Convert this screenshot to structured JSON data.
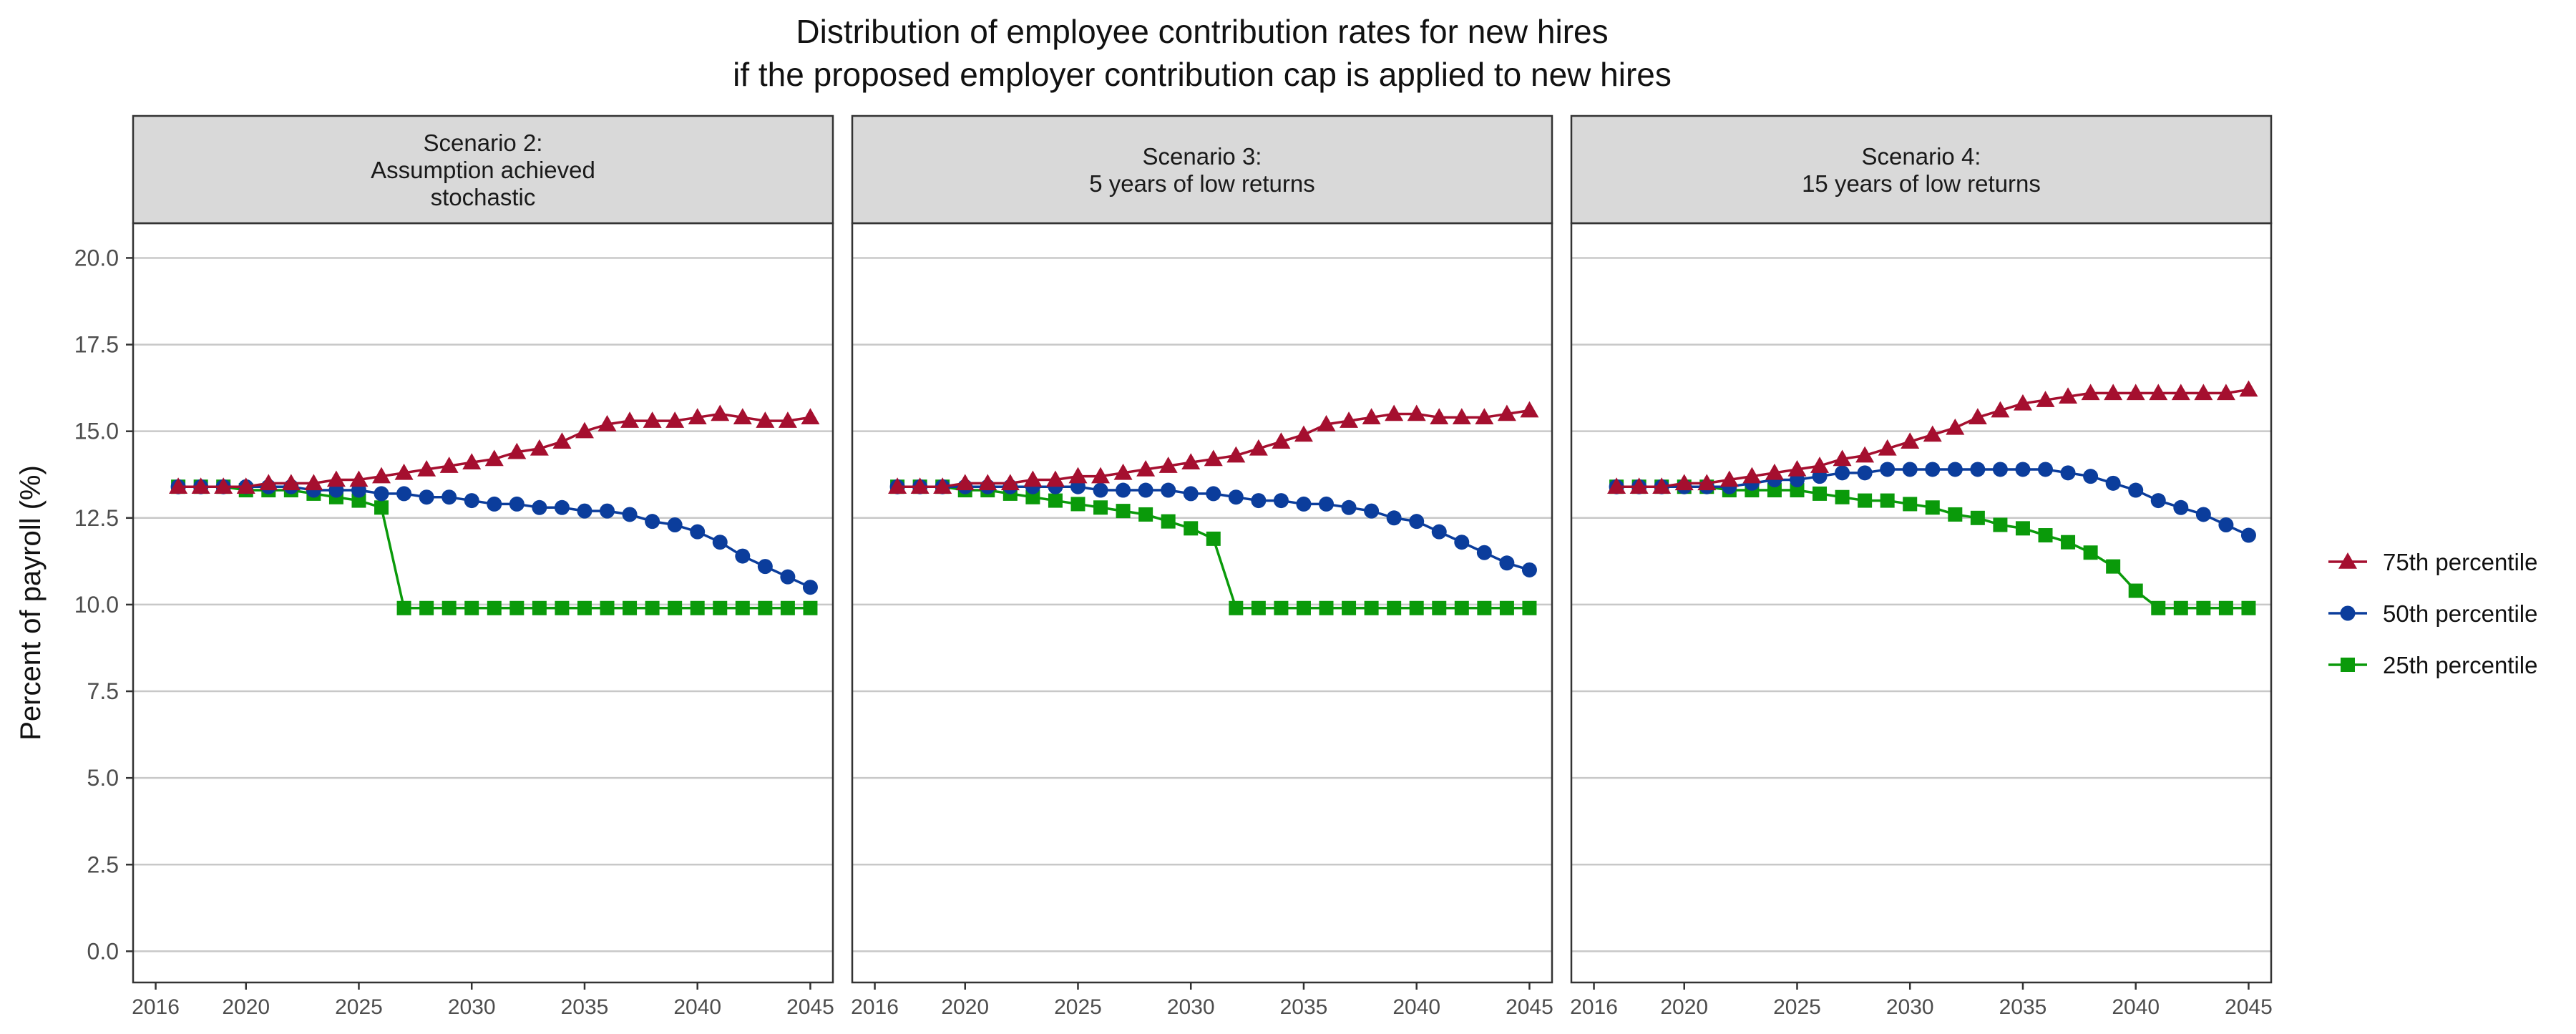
{
  "chart_data": {
    "type": "line",
    "title_lines": [
      "Distribution of employee contribution rates for new hires",
      "if the proposed employer contribution cap is applied to new hires"
    ],
    "ylabel": "Percent of payroll (%)",
    "xlabel": "",
    "ylim": [
      -0.9,
      21.0
    ],
    "xlim": [
      2015.0,
      2046.0
    ],
    "y_ticks": [
      0.0,
      2.5,
      5.0,
      7.5,
      10.0,
      12.5,
      15.0,
      17.5,
      20.0
    ],
    "y_tick_labels": [
      "0.0",
      "2.5",
      "5.0",
      "7.5",
      "10.0",
      "12.5",
      "15.0",
      "17.5",
      "20.0"
    ],
    "x_ticks": [
      2016,
      2020,
      2025,
      2030,
      2035,
      2040,
      2045
    ],
    "x_tick_labels": [
      "2016",
      "2020",
      "2025",
      "2030",
      "2035",
      "2040",
      "2045"
    ],
    "grid": "horizontal major gridlines",
    "legend_position": "right",
    "legend": [
      {
        "key": "p75",
        "label": "75th percentile",
        "color": "#a50f2f",
        "marker": "triangle"
      },
      {
        "key": "p50",
        "label": "50th percentile",
        "color": "#0b3d9c",
        "marker": "circle"
      },
      {
        "key": "p25",
        "label": "25th percentile",
        "color": "#0a9a0a",
        "marker": "square"
      }
    ],
    "x": [
      2017,
      2018,
      2019,
      2020,
      2021,
      2022,
      2023,
      2024,
      2025,
      2026,
      2027,
      2028,
      2029,
      2030,
      2031,
      2032,
      2033,
      2034,
      2035,
      2036,
      2037,
      2038,
      2039,
      2040,
      2041,
      2042,
      2043,
      2044,
      2045
    ],
    "panels": [
      {
        "strip_lines": [
          "Scenario 2:",
          "Assumption achieved",
          "stochastic"
        ],
        "series": {
          "p75": [
            13.4,
            13.4,
            13.4,
            13.4,
            13.5,
            13.5,
            13.5,
            13.6,
            13.6,
            13.7,
            13.8,
            13.9,
            14.0,
            14.1,
            14.2,
            14.4,
            14.5,
            14.7,
            15.0,
            15.2,
            15.3,
            15.3,
            15.3,
            15.4,
            15.5,
            15.4,
            15.3,
            15.3,
            15.4
          ],
          "p50": [
            13.4,
            13.4,
            13.4,
            13.4,
            13.4,
            13.4,
            13.3,
            13.3,
            13.3,
            13.2,
            13.2,
            13.1,
            13.1,
            13.0,
            12.9,
            12.9,
            12.8,
            12.8,
            12.7,
            12.7,
            12.6,
            12.4,
            12.3,
            12.1,
            11.8,
            11.4,
            11.1,
            10.8,
            10.5
          ],
          "p25": [
            13.4,
            13.4,
            13.4,
            13.3,
            13.3,
            13.3,
            13.2,
            13.1,
            13.0,
            12.8,
            9.9,
            9.9,
            9.9,
            9.9,
            9.9,
            9.9,
            9.9,
            9.9,
            9.9,
            9.9,
            9.9,
            9.9,
            9.9,
            9.9,
            9.9,
            9.9,
            9.9,
            9.9,
            9.9
          ]
        }
      },
      {
        "strip_lines": [
          "Scenario 3:",
          "5 years of low returns"
        ],
        "series": {
          "p75": [
            13.4,
            13.4,
            13.4,
            13.5,
            13.5,
            13.5,
            13.6,
            13.6,
            13.7,
            13.7,
            13.8,
            13.9,
            14.0,
            14.1,
            14.2,
            14.3,
            14.5,
            14.7,
            14.9,
            15.2,
            15.3,
            15.4,
            15.5,
            15.5,
            15.4,
            15.4,
            15.4,
            15.5,
            15.6
          ],
          "p50": [
            13.4,
            13.4,
            13.4,
            13.4,
            13.4,
            13.4,
            13.4,
            13.4,
            13.4,
            13.3,
            13.3,
            13.3,
            13.3,
            13.2,
            13.2,
            13.1,
            13.0,
            13.0,
            12.9,
            12.9,
            12.8,
            12.7,
            12.5,
            12.4,
            12.1,
            11.8,
            11.5,
            11.2,
            11.0
          ],
          "p25": [
            13.4,
            13.4,
            13.4,
            13.3,
            13.3,
            13.2,
            13.1,
            13.0,
            12.9,
            12.8,
            12.7,
            12.6,
            12.4,
            12.2,
            11.9,
            9.9,
            9.9,
            9.9,
            9.9,
            9.9,
            9.9,
            9.9,
            9.9,
            9.9,
            9.9,
            9.9,
            9.9,
            9.9,
            9.9
          ]
        }
      },
      {
        "strip_lines": [
          "Scenario 4:",
          "15 years of low returns"
        ],
        "series": {
          "p75": [
            13.4,
            13.4,
            13.4,
            13.5,
            13.5,
            13.6,
            13.7,
            13.8,
            13.9,
            14.0,
            14.2,
            14.3,
            14.5,
            14.7,
            14.9,
            15.1,
            15.4,
            15.6,
            15.8,
            15.9,
            16.0,
            16.1,
            16.1,
            16.1,
            16.1,
            16.1,
            16.1,
            16.1,
            16.2
          ],
          "p50": [
            13.4,
            13.4,
            13.4,
            13.4,
            13.4,
            13.4,
            13.5,
            13.6,
            13.6,
            13.7,
            13.8,
            13.8,
            13.9,
            13.9,
            13.9,
            13.9,
            13.9,
            13.9,
            13.9,
            13.9,
            13.8,
            13.7,
            13.5,
            13.3,
            13.0,
            12.8,
            12.6,
            12.3,
            12.0
          ],
          "p25": [
            13.4,
            13.4,
            13.4,
            13.4,
            13.4,
            13.3,
            13.3,
            13.3,
            13.3,
            13.2,
            13.1,
            13.0,
            13.0,
            12.9,
            12.8,
            12.6,
            12.5,
            12.3,
            12.2,
            12.0,
            11.8,
            11.5,
            11.1,
            10.4,
            9.9,
            9.9,
            9.9,
            9.9,
            9.9
          ]
        }
      }
    ]
  }
}
